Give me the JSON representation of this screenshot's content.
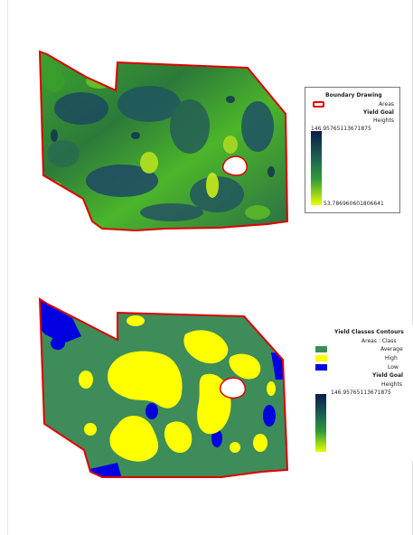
{
  "legend_top": {
    "title": "Boundary Drawing",
    "areas_label": "Areas",
    "yield_goal_title": "Yield Goal",
    "heights_label": "Heights",
    "max_value": "146.95765113671875",
    "min_value": "53.786960601806641"
  },
  "legend_bottom": {
    "title": "Yield Classes Contours",
    "areas_class_label": "Areas : Class",
    "classes": [
      {
        "label": "Average",
        "color": "#3e8c5a"
      },
      {
        "label": "High",
        "color": "#ffff00"
      },
      {
        "label": "Low",
        "color": "#0000e0"
      }
    ],
    "yield_goal_title": "Yield Goal",
    "heights_label": "Heights",
    "max_value": "146.95765113671875"
  },
  "colors": {
    "boundary": "#e00000",
    "ramp_high": "#0b1a4a",
    "ramp_mid": "#2f9a3a",
    "ramp_low": "#e8ff00"
  }
}
